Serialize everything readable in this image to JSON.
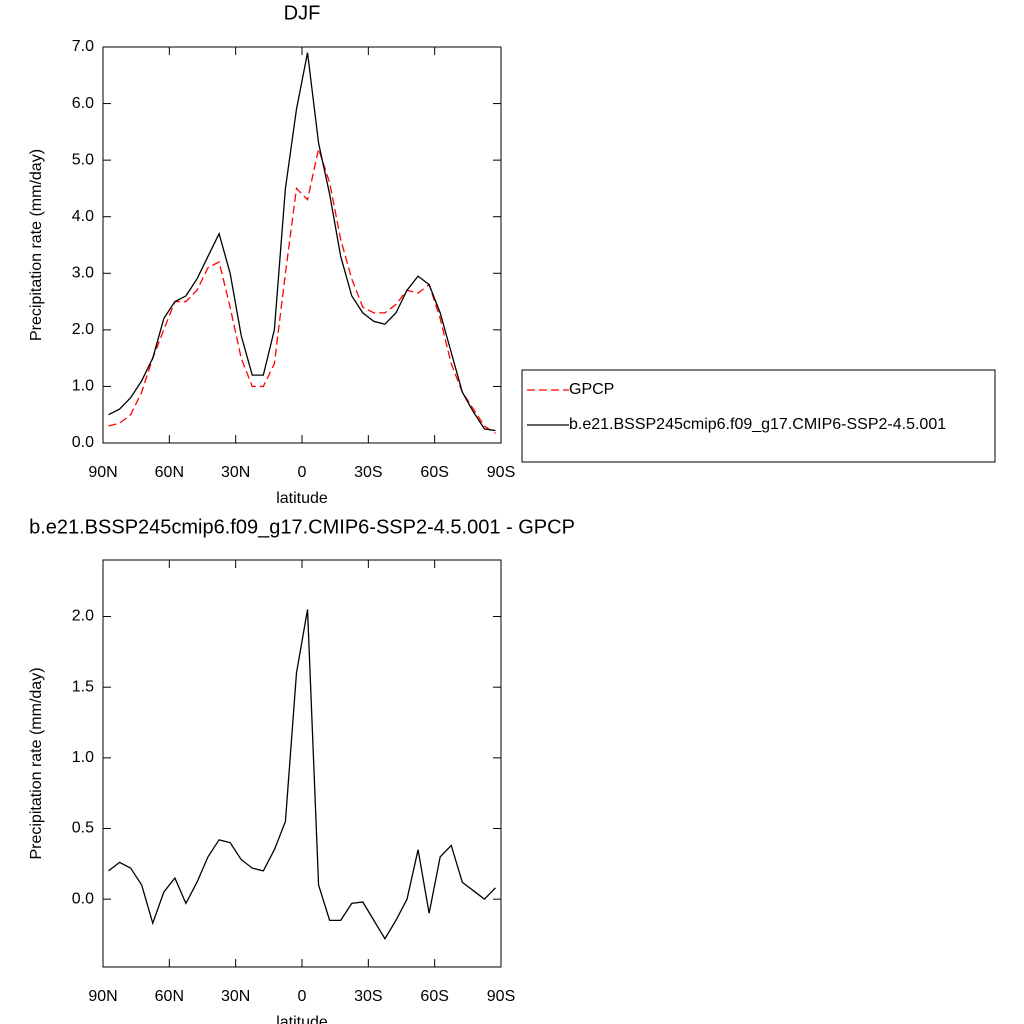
{
  "chart_data": [
    {
      "type": "line",
      "title": "DJF",
      "xlabel": "latitude",
      "ylabel": "Precipitation rate (mm/day)",
      "x": [
        87.5,
        82.5,
        77.5,
        72.5,
        67.5,
        62.5,
        57.5,
        52.5,
        47.5,
        42.5,
        37.5,
        32.5,
        27.5,
        22.5,
        17.5,
        12.5,
        7.5,
        2.5,
        -2.5,
        -7.5,
        -12.5,
        -17.5,
        -22.5,
        -27.5,
        -32.5,
        -37.5,
        -42.5,
        -47.5,
        -52.5,
        -57.5,
        -62.5,
        -67.5,
        -72.5,
        -77.5,
        -82.5,
        -87.5
      ],
      "series": [
        {
          "name": "GPCP",
          "color": "#ff0000",
          "dashed": true,
          "values": [
            0.3,
            0.35,
            0.5,
            0.9,
            1.5,
            2.0,
            2.5,
            2.5,
            2.7,
            3.1,
            3.2,
            2.4,
            1.5,
            1.0,
            1.0,
            1.4,
            3.0,
            4.5,
            4.3,
            5.2,
            4.6,
            3.6,
            2.9,
            2.4,
            2.3,
            2.3,
            2.45,
            2.7,
            2.65,
            2.8,
            2.2,
            1.4,
            0.9,
            0.6,
            0.3,
            0.17
          ]
        },
        {
          "name": "b.e21.BSSP245cmip6.f09_g17.CMIP6-SSP2-4.5.001",
          "color": "#000000",
          "dashed": false,
          "values": [
            0.5,
            0.6,
            0.8,
            1.1,
            1.5,
            2.2,
            2.5,
            2.6,
            2.9,
            3.3,
            3.7,
            3.0,
            1.9,
            1.2,
            1.2,
            2.0,
            4.5,
            5.9,
            6.9,
            5.3,
            4.4,
            3.3,
            2.6,
            2.3,
            2.15,
            2.1,
            2.3,
            2.7,
            2.95,
            2.8,
            2.3,
            1.6,
            0.9,
            0.55,
            0.25,
            0.22
          ]
        }
      ],
      "xlim": [
        90,
        -90
      ],
      "xticks": [
        {
          "value": 90,
          "label": "90N"
        },
        {
          "value": 60,
          "label": "60N"
        },
        {
          "value": 30,
          "label": "30N"
        },
        0,
        {
          "value": -30,
          "label": "30S"
        },
        {
          "value": -60,
          "label": "60S"
        },
        {
          "value": -90,
          "label": "90S"
        }
      ],
      "ylim": [
        0,
        7
      ],
      "yticks": [
        {
          "value": 0,
          "label": "0.0"
        },
        {
          "value": 1,
          "label": "1.0"
        },
        {
          "value": 2,
          "label": "2.0"
        },
        {
          "value": 3,
          "label": "3.0"
        },
        {
          "value": 4,
          "label": "4.0"
        },
        {
          "value": 5,
          "label": "5.0"
        },
        {
          "value": 6,
          "label": "6.0"
        },
        {
          "value": 7,
          "label": "7.0"
        }
      ],
      "legend": "right"
    },
    {
      "type": "line",
      "title": "b.e21.BSSP245cmip6.f09_g17.CMIP6-SSP2-4.5.001 - GPCP",
      "xlabel": "latitude",
      "ylabel": "Precipitation rate (mm/day)",
      "x": [
        87.5,
        82.5,
        77.5,
        72.5,
        67.5,
        62.5,
        57.5,
        52.5,
        47.5,
        42.5,
        37.5,
        32.5,
        27.5,
        22.5,
        17.5,
        12.5,
        7.5,
        2.5,
        -2.5,
        -7.5,
        -12.5,
        -17.5,
        -22.5,
        -27.5,
        -32.5,
        -37.5,
        -42.5,
        -47.5,
        -52.5,
        -57.5,
        -62.5,
        -67.5,
        -72.5,
        -77.5,
        -82.5,
        -87.5
      ],
      "series": [
        {
          "color": "#000000",
          "dashed": false,
          "values": [
            0.2,
            0.26,
            0.22,
            0.1,
            -0.17,
            0.05,
            0.15,
            -0.03,
            0.12,
            0.3,
            0.42,
            0.4,
            0.28,
            0.22,
            0.2,
            0.35,
            0.55,
            1.6,
            2.05,
            0.1,
            -0.15,
            -0.15,
            -0.03,
            -0.02,
            -0.15,
            -0.28,
            -0.15,
            0.0,
            0.35,
            -0.1,
            0.3,
            0.38,
            0.12,
            0.06,
            0.0,
            0.08
          ]
        }
      ],
      "xlim": [
        90,
        -90
      ],
      "xticks": [
        {
          "value": 90,
          "label": "90N"
        },
        {
          "value": 60,
          "label": "60N"
        },
        {
          "value": 30,
          "label": "30N"
        },
        0,
        {
          "value": -30,
          "label": "30S"
        },
        {
          "value": -60,
          "label": "60S"
        },
        {
          "value": -90,
          "label": "90S"
        }
      ],
      "ylim": [
        -0.48,
        2.4
      ],
      "yticks": [
        {
          "value": 0,
          "label": "0.0"
        },
        {
          "value": 0.5,
          "label": "0.5"
        },
        {
          "value": 1,
          "label": "1.0"
        },
        {
          "value": 1.5,
          "label": "1.5"
        },
        {
          "value": 2,
          "label": "2.0"
        }
      ]
    }
  ]
}
